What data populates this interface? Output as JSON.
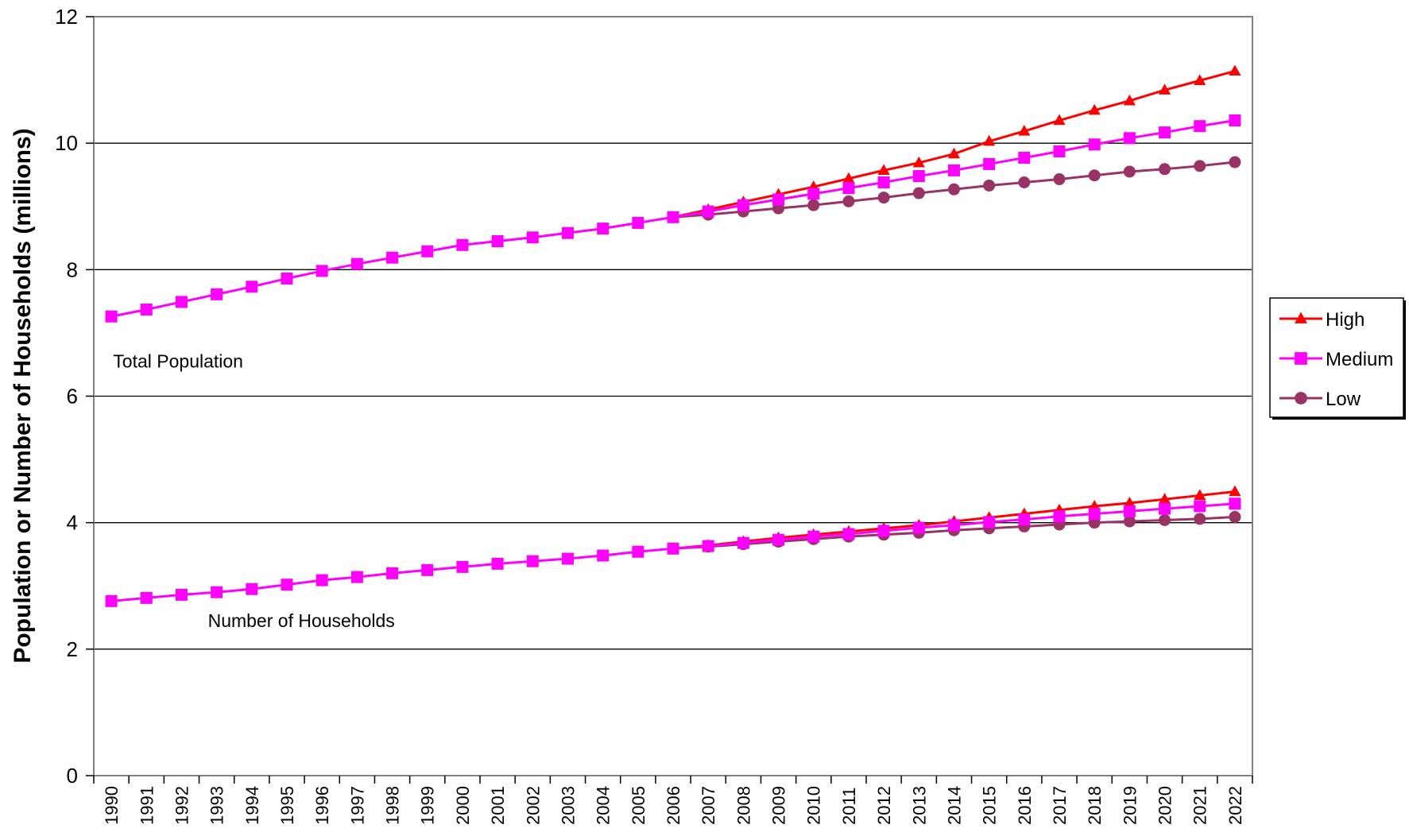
{
  "chart_data": {
    "type": "line",
    "title": "",
    "xlabel": "",
    "ylabel": "Population or Number of Households (millions)",
    "ylim": [
      0,
      12
    ],
    "yticks": [
      0,
      2,
      4,
      6,
      8,
      10,
      12
    ],
    "grid": "horizontal",
    "legend_position": "right",
    "x": [
      1990,
      1991,
      1992,
      1993,
      1994,
      1995,
      1996,
      1997,
      1998,
      1999,
      2000,
      2001,
      2002,
      2003,
      2004,
      2005,
      2006,
      2007,
      2008,
      2009,
      2010,
      2011,
      2012,
      2013,
      2014,
      2015,
      2016,
      2017,
      2018,
      2019,
      2020,
      2021,
      2022
    ],
    "annotations": [
      {
        "text": "Total Population",
        "x": 1990.05,
        "y": 6.45
      },
      {
        "text": "Number of Households",
        "x": 1992.75,
        "y": 2.35
      }
    ],
    "series": [
      {
        "name": "High",
        "group": "Total Population",
        "color": "#ff0000",
        "marker": "triangle",
        "values": [
          null,
          null,
          null,
          null,
          null,
          null,
          null,
          null,
          null,
          null,
          null,
          null,
          null,
          null,
          null,
          null,
          8.83,
          8.95,
          9.07,
          9.19,
          9.31,
          9.44,
          9.57,
          9.69,
          9.83,
          10.03,
          10.19,
          10.36,
          10.52,
          10.67,
          10.84,
          10.99,
          11.14
        ]
      },
      {
        "name": "Medium",
        "group": "Total Population",
        "color": "#ff00ff",
        "marker": "square",
        "values": [
          7.26,
          7.37,
          7.49,
          7.61,
          7.73,
          7.86,
          7.98,
          8.09,
          8.19,
          8.29,
          8.39,
          8.45,
          8.51,
          8.58,
          8.65,
          8.74,
          8.83,
          8.92,
          9.02,
          9.11,
          9.2,
          9.29,
          9.38,
          9.48,
          9.57,
          9.67,
          9.77,
          9.87,
          9.98,
          10.08,
          10.17,
          10.27,
          10.36
        ]
      },
      {
        "name": "Low",
        "group": "Total Population",
        "color": "#993366",
        "marker": "circle",
        "values": [
          null,
          null,
          null,
          null,
          null,
          null,
          null,
          null,
          null,
          null,
          null,
          null,
          null,
          null,
          null,
          null,
          8.83,
          8.87,
          8.92,
          8.97,
          9.02,
          9.08,
          9.14,
          9.21,
          9.27,
          9.33,
          9.38,
          9.43,
          9.49,
          9.55,
          9.59,
          9.64,
          9.7
        ]
      },
      {
        "name": "High",
        "group": "Number of Households",
        "color": "#ff0000",
        "marker": "triangle",
        "values": [
          null,
          null,
          null,
          null,
          null,
          null,
          null,
          null,
          null,
          null,
          null,
          null,
          null,
          null,
          null,
          null,
          3.59,
          3.64,
          3.7,
          3.76,
          3.81,
          3.86,
          3.91,
          3.96,
          4.02,
          4.08,
          4.14,
          4.2,
          4.26,
          4.31,
          4.37,
          4.43,
          4.49
        ]
      },
      {
        "name": "Medium",
        "group": "Number of Households",
        "color": "#ff00ff",
        "marker": "square",
        "values": [
          2.76,
          2.81,
          2.86,
          2.9,
          2.95,
          3.02,
          3.09,
          3.14,
          3.2,
          3.25,
          3.3,
          3.35,
          3.39,
          3.43,
          3.48,
          3.54,
          3.59,
          3.63,
          3.68,
          3.73,
          3.78,
          3.82,
          3.87,
          3.92,
          3.96,
          4.01,
          4.05,
          4.1,
          4.14,
          4.18,
          4.22,
          4.26,
          4.3
        ]
      },
      {
        "name": "Low",
        "group": "Number of Households",
        "color": "#993366",
        "marker": "circle",
        "values": [
          null,
          null,
          null,
          null,
          null,
          null,
          null,
          null,
          null,
          null,
          null,
          null,
          null,
          null,
          null,
          null,
          3.59,
          3.62,
          3.66,
          3.7,
          3.74,
          3.78,
          3.81,
          3.84,
          3.88,
          3.91,
          3.94,
          3.97,
          4.0,
          4.02,
          4.04,
          4.06,
          4.09
        ]
      }
    ],
    "legend": [
      {
        "label": "High",
        "color": "#ff0000",
        "marker": "triangle"
      },
      {
        "label": "Medium",
        "color": "#ff00ff",
        "marker": "square"
      },
      {
        "label": "Low",
        "color": "#993366",
        "marker": "circle"
      }
    ]
  }
}
